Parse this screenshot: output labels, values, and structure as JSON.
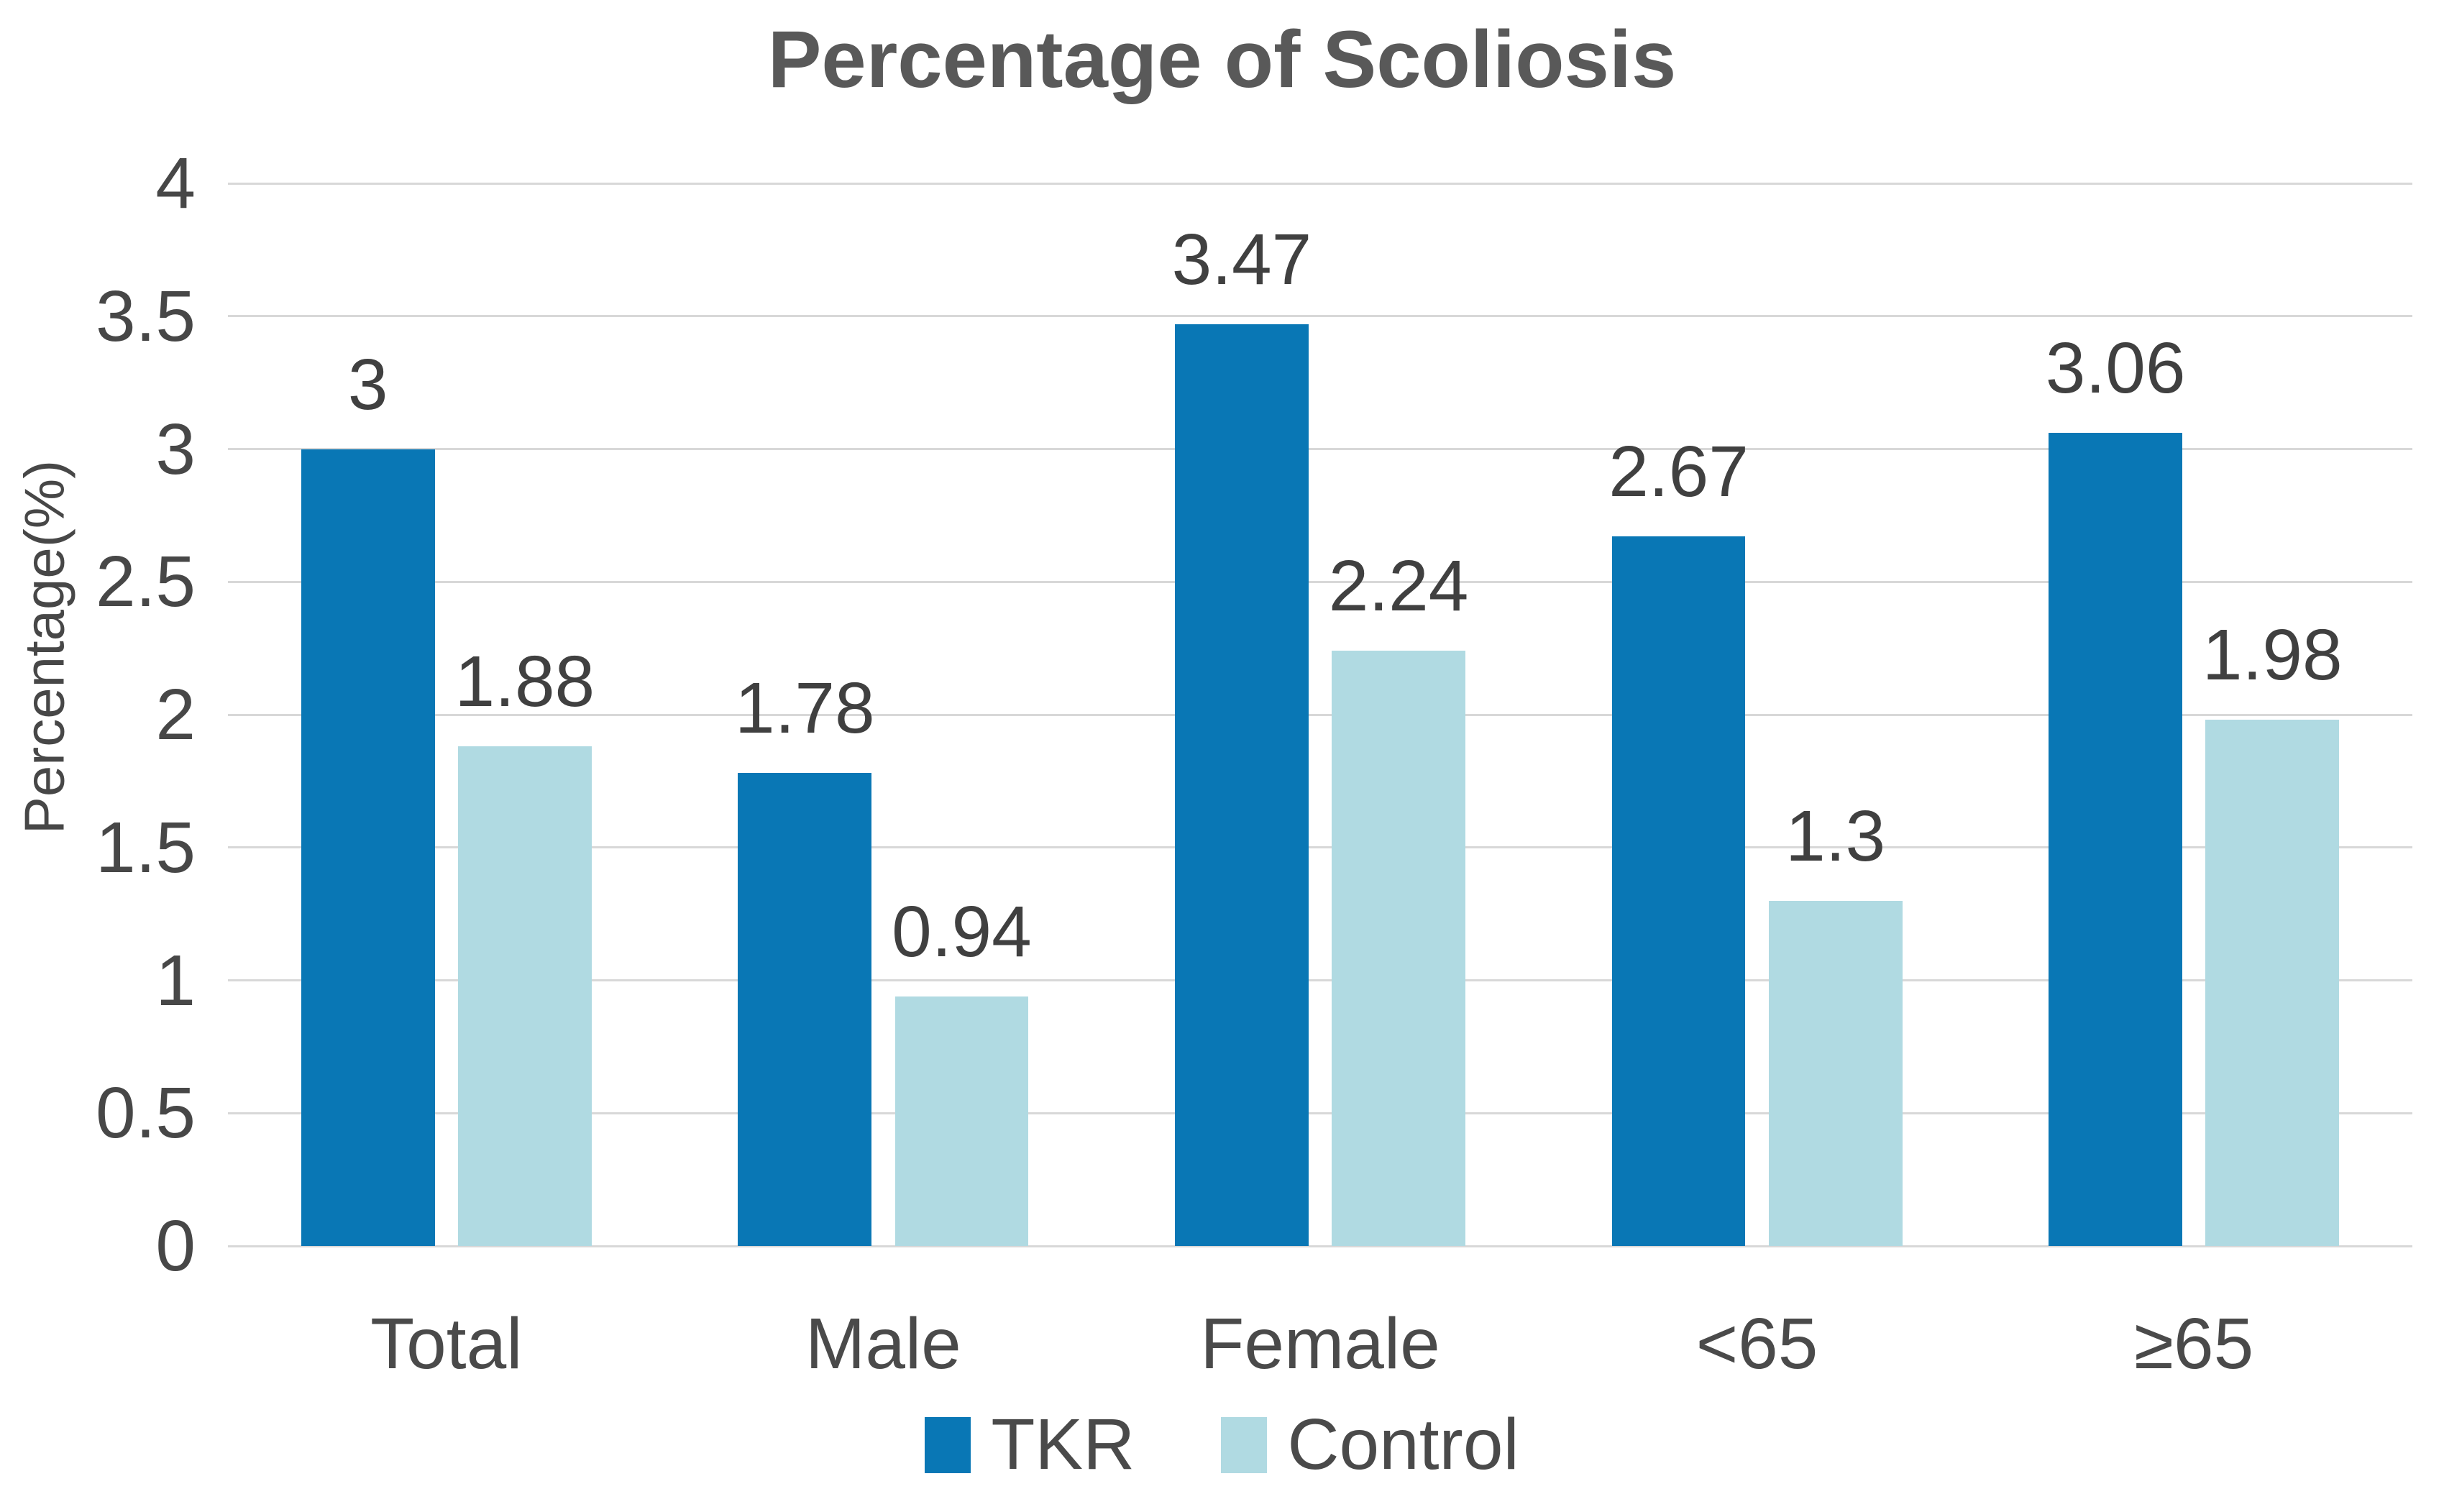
{
  "title": "Percentage of Scoliosis",
  "chart_data": {
    "type": "bar",
    "title": "Percentage of Scoliosis",
    "xlabel": "",
    "ylabel": "Percentage(%)",
    "ylim": [
      0,
      4
    ],
    "ytick_step": 0.5,
    "grid": true,
    "legend_position": "bottom",
    "background": "#ffffff",
    "gridline_color": "#d8d8d8",
    "categories": [
      "Total",
      "Male",
      "Female",
      "<65",
      "≥65"
    ],
    "yticks": [
      {
        "value": 0,
        "label": "0"
      },
      {
        "value": 0.5,
        "label": "0.5"
      },
      {
        "value": 1,
        "label": "1"
      },
      {
        "value": 1.5,
        "label": "1.5"
      },
      {
        "value": 2,
        "label": "2"
      },
      {
        "value": 2.5,
        "label": "2.5"
      },
      {
        "value": 3,
        "label": "3"
      },
      {
        "value": 3.5,
        "label": "3.5"
      },
      {
        "value": 4,
        "label": "4"
      }
    ],
    "series": [
      {
        "name": "TKR",
        "color": "#0977b5",
        "values": [
          3,
          1.78,
          3.47,
          2.67,
          3.06
        ],
        "labels": [
          "3",
          "1.78",
          "3.47",
          "2.67",
          "3.06"
        ]
      },
      {
        "name": "Control",
        "color": "#b0dae2",
        "values": [
          1.88,
          0.94,
          2.24,
          1.3,
          1.98
        ],
        "labels": [
          "1.88",
          "0.94",
          "2.24",
          "1.3",
          "1.98"
        ]
      }
    ]
  }
}
